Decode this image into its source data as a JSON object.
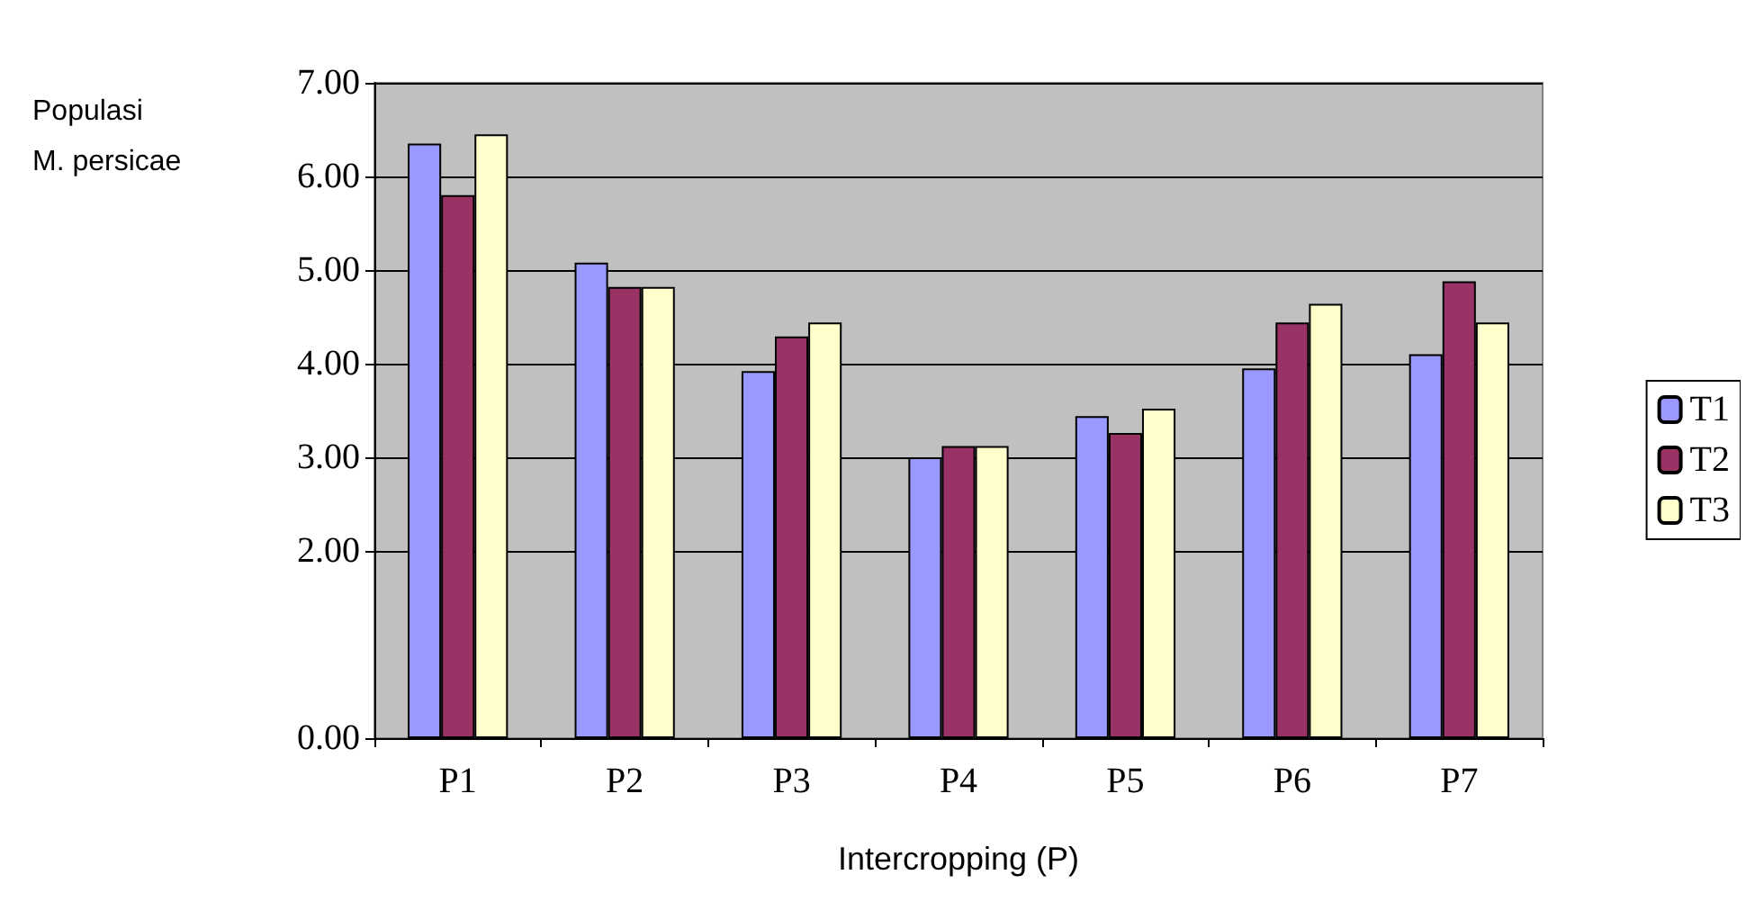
{
  "chart_data": {
    "type": "bar",
    "ylabel": "Populasi\n\nM. persicae",
    "xlabel": "Intercropping (P)",
    "categories": [
      "P1",
      "P2",
      "P3",
      "P4",
      "P5",
      "P6",
      "P7"
    ],
    "series": [
      {
        "name": "T1",
        "color": "#9999ff",
        "values": [
          6.35,
          5.08,
          3.92,
          3.0,
          3.44,
          3.95,
          4.1
        ]
      },
      {
        "name": "T2",
        "color": "#993366",
        "values": [
          5.8,
          4.82,
          4.29,
          3.12,
          3.26,
          4.44,
          4.88
        ]
      },
      {
        "name": "T3",
        "color": "#ffffcc",
        "values": [
          6.45,
          4.82,
          4.44,
          3.12,
          3.52,
          4.64,
          4.44
        ]
      }
    ],
    "ylim": [
      0,
      7
    ],
    "yticks": [
      {
        "value": 0,
        "label": "0.00"
      },
      {
        "value": 2,
        "label": "2.00"
      },
      {
        "value": 3,
        "label": "3.00"
      },
      {
        "value": 4,
        "label": "4.00"
      },
      {
        "value": 5,
        "label": "5.00"
      },
      {
        "value": 6,
        "label": "6.00"
      },
      {
        "value": 7,
        "label": "7.00"
      }
    ],
    "grid": "y",
    "legend": "right"
  }
}
